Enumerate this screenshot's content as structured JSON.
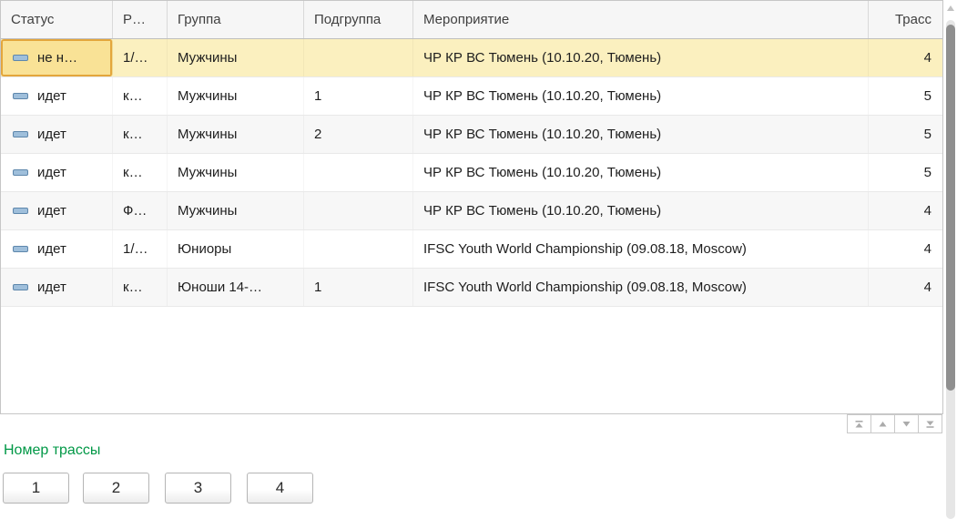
{
  "table": {
    "columns": [
      {
        "label": "Статус"
      },
      {
        "label": "Р…"
      },
      {
        "label": "Группа"
      },
      {
        "label": "Подгруппа"
      },
      {
        "label": "Мероприятие"
      },
      {
        "label": "Трасс"
      }
    ],
    "rows": [
      {
        "status": "не н…",
        "round": "1/…",
        "group": "Мужчины",
        "subgroup": "",
        "event": "ЧР КР ВС Тюмень (10.10.20, Тюмень)",
        "routes": "4",
        "selected": true
      },
      {
        "status": "идет",
        "round": "к…",
        "group": "Мужчины",
        "subgroup": "1",
        "event": "ЧР КР ВС Тюмень (10.10.20, Тюмень)",
        "routes": "5",
        "selected": false
      },
      {
        "status": "идет",
        "round": "к…",
        "group": "Мужчины",
        "subgroup": "2",
        "event": "ЧР КР ВС Тюмень (10.10.20, Тюмень)",
        "routes": "5",
        "selected": false
      },
      {
        "status": "идет",
        "round": "к…",
        "group": "Мужчины",
        "subgroup": "",
        "event": "ЧР КР ВС Тюмень (10.10.20, Тюмень)",
        "routes": "5",
        "selected": false
      },
      {
        "status": "идет",
        "round": "Ф…",
        "group": "Мужчины",
        "subgroup": "",
        "event": "ЧР КР ВС Тюмень (10.10.20, Тюмень)",
        "routes": "4",
        "selected": false
      },
      {
        "status": "идет",
        "round": "1/…",
        "group": "Юниоры",
        "subgroup": "",
        "event": "IFSC Youth World Championship (09.08.18, Moscow)",
        "routes": "4",
        "selected": false
      },
      {
        "status": "идет",
        "round": "к…",
        "group": "Юноши 14-…",
        "subgroup": "1",
        "event": "IFSC Youth World Championship (09.08.18, Moscow)",
        "routes": "4",
        "selected": false
      }
    ],
    "status_icon": "status-dash-icon"
  },
  "scroll_toolbar": {
    "buttons": [
      {
        "name": "scroll-to-top"
      },
      {
        "name": "scroll-up"
      },
      {
        "name": "scroll-down"
      },
      {
        "name": "scroll-to-bottom"
      }
    ]
  },
  "route_panel": {
    "label": "Номер трассы",
    "buttons": [
      "1",
      "2",
      "3",
      "4"
    ]
  },
  "colors": {
    "selection_row_bg": "#FBF0BF",
    "selection_cell_bg": "#F9E296",
    "selection_focus_border": "#E3A63C",
    "alt_row_bg": "#F7F7F7",
    "label_green": "#009846",
    "status_icon_fill": "#9FBFDB",
    "status_icon_border": "#5E87AC"
  }
}
